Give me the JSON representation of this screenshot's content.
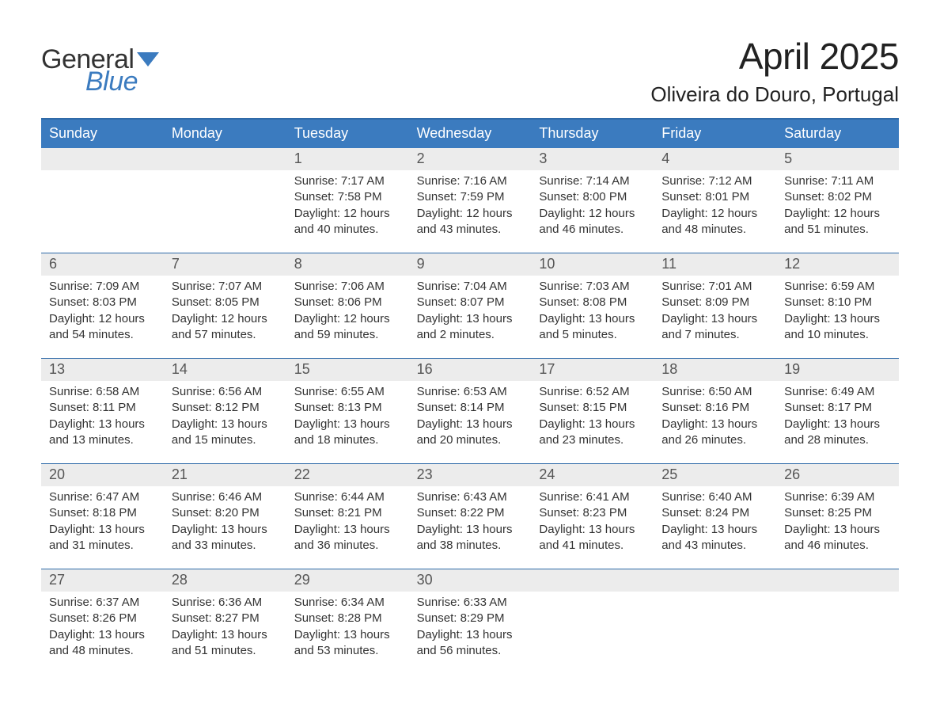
{
  "brand": {
    "word1": "General",
    "word2": "Blue"
  },
  "title": "April 2025",
  "location": "Oliveira do Douro, Portugal",
  "styling": {
    "header_blue": "#3b7bbf",
    "row_separator": "#2f6aa8",
    "daynum_bg": "#ececec",
    "text_color": "#333333",
    "title_fontsize_pt": 34,
    "location_fontsize_pt": 20,
    "dow_fontsize_pt": 14,
    "body_fontsize_pt": 11,
    "columns": 7
  },
  "days_of_week": [
    "Sunday",
    "Monday",
    "Tuesday",
    "Wednesday",
    "Thursday",
    "Friday",
    "Saturday"
  ],
  "weeks": [
    [
      null,
      null,
      {
        "n": "1",
        "sunrise": "7:17 AM",
        "sunset": "7:58 PM",
        "dl": "12 hours and 40 minutes."
      },
      {
        "n": "2",
        "sunrise": "7:16 AM",
        "sunset": "7:59 PM",
        "dl": "12 hours and 43 minutes."
      },
      {
        "n": "3",
        "sunrise": "7:14 AM",
        "sunset": "8:00 PM",
        "dl": "12 hours and 46 minutes."
      },
      {
        "n": "4",
        "sunrise": "7:12 AM",
        "sunset": "8:01 PM",
        "dl": "12 hours and 48 minutes."
      },
      {
        "n": "5",
        "sunrise": "7:11 AM",
        "sunset": "8:02 PM",
        "dl": "12 hours and 51 minutes."
      }
    ],
    [
      {
        "n": "6",
        "sunrise": "7:09 AM",
        "sunset": "8:03 PM",
        "dl": "12 hours and 54 minutes."
      },
      {
        "n": "7",
        "sunrise": "7:07 AM",
        "sunset": "8:05 PM",
        "dl": "12 hours and 57 minutes."
      },
      {
        "n": "8",
        "sunrise": "7:06 AM",
        "sunset": "8:06 PM",
        "dl": "12 hours and 59 minutes."
      },
      {
        "n": "9",
        "sunrise": "7:04 AM",
        "sunset": "8:07 PM",
        "dl": "13 hours and 2 minutes."
      },
      {
        "n": "10",
        "sunrise": "7:03 AM",
        "sunset": "8:08 PM",
        "dl": "13 hours and 5 minutes."
      },
      {
        "n": "11",
        "sunrise": "7:01 AM",
        "sunset": "8:09 PM",
        "dl": "13 hours and 7 minutes."
      },
      {
        "n": "12",
        "sunrise": "6:59 AM",
        "sunset": "8:10 PM",
        "dl": "13 hours and 10 minutes."
      }
    ],
    [
      {
        "n": "13",
        "sunrise": "6:58 AM",
        "sunset": "8:11 PM",
        "dl": "13 hours and 13 minutes."
      },
      {
        "n": "14",
        "sunrise": "6:56 AM",
        "sunset": "8:12 PM",
        "dl": "13 hours and 15 minutes."
      },
      {
        "n": "15",
        "sunrise": "6:55 AM",
        "sunset": "8:13 PM",
        "dl": "13 hours and 18 minutes."
      },
      {
        "n": "16",
        "sunrise": "6:53 AM",
        "sunset": "8:14 PM",
        "dl": "13 hours and 20 minutes."
      },
      {
        "n": "17",
        "sunrise": "6:52 AM",
        "sunset": "8:15 PM",
        "dl": "13 hours and 23 minutes."
      },
      {
        "n": "18",
        "sunrise": "6:50 AM",
        "sunset": "8:16 PM",
        "dl": "13 hours and 26 minutes."
      },
      {
        "n": "19",
        "sunrise": "6:49 AM",
        "sunset": "8:17 PM",
        "dl": "13 hours and 28 minutes."
      }
    ],
    [
      {
        "n": "20",
        "sunrise": "6:47 AM",
        "sunset": "8:18 PM",
        "dl": "13 hours and 31 minutes."
      },
      {
        "n": "21",
        "sunrise": "6:46 AM",
        "sunset": "8:20 PM",
        "dl": "13 hours and 33 minutes."
      },
      {
        "n": "22",
        "sunrise": "6:44 AM",
        "sunset": "8:21 PM",
        "dl": "13 hours and 36 minutes."
      },
      {
        "n": "23",
        "sunrise": "6:43 AM",
        "sunset": "8:22 PM",
        "dl": "13 hours and 38 minutes."
      },
      {
        "n": "24",
        "sunrise": "6:41 AM",
        "sunset": "8:23 PM",
        "dl": "13 hours and 41 minutes."
      },
      {
        "n": "25",
        "sunrise": "6:40 AM",
        "sunset": "8:24 PM",
        "dl": "13 hours and 43 minutes."
      },
      {
        "n": "26",
        "sunrise": "6:39 AM",
        "sunset": "8:25 PM",
        "dl": "13 hours and 46 minutes."
      }
    ],
    [
      {
        "n": "27",
        "sunrise": "6:37 AM",
        "sunset": "8:26 PM",
        "dl": "13 hours and 48 minutes."
      },
      {
        "n": "28",
        "sunrise": "6:36 AM",
        "sunset": "8:27 PM",
        "dl": "13 hours and 51 minutes."
      },
      {
        "n": "29",
        "sunrise": "6:34 AM",
        "sunset": "8:28 PM",
        "dl": "13 hours and 53 minutes."
      },
      {
        "n": "30",
        "sunrise": "6:33 AM",
        "sunset": "8:29 PM",
        "dl": "13 hours and 56 minutes."
      },
      null,
      null,
      null
    ]
  ],
  "labels": {
    "sunrise_prefix": "Sunrise: ",
    "sunset_prefix": "Sunset: ",
    "daylight_prefix": "Daylight: "
  }
}
